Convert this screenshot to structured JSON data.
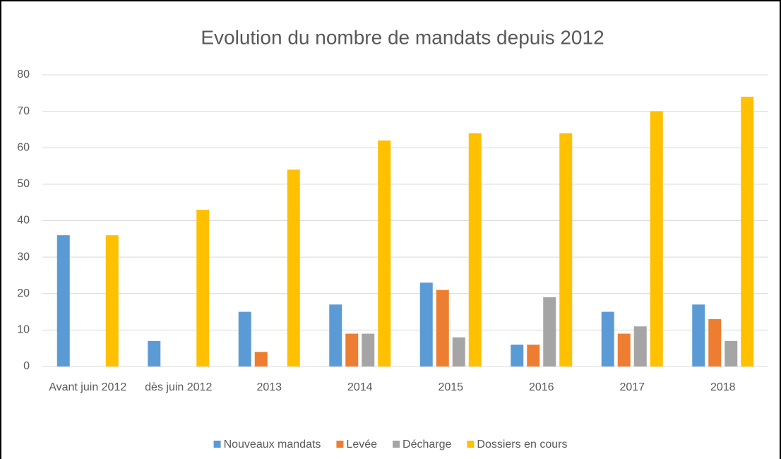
{
  "chart_data": {
    "type": "bar",
    "title": "Evolution du nombre de mandats depuis 2012",
    "categories": [
      "Avant juin 2012",
      "dès juin 2012",
      "2013",
      "2014",
      "2015",
      "2016",
      "2017",
      "2018"
    ],
    "series": [
      {
        "name": "Nouveaux mandats",
        "color": "#5b9bd5",
        "values": [
          36,
          7,
          15,
          17,
          23,
          6,
          15,
          17
        ]
      },
      {
        "name": "Levée",
        "color": "#ed7d31",
        "values": [
          0,
          0,
          4,
          9,
          21,
          6,
          9,
          13
        ]
      },
      {
        "name": "Décharge",
        "color": "#a5a5a5",
        "values": [
          0,
          0,
          0,
          9,
          8,
          19,
          11,
          7
        ]
      },
      {
        "name": "Dossiers en cours",
        "color": "#ffc000",
        "values": [
          36,
          43,
          54,
          62,
          64,
          64,
          70,
          74
        ]
      }
    ],
    "ylim": [
      0,
      80
    ],
    "yticks": [
      0,
      10,
      20,
      30,
      40,
      50,
      60,
      70,
      80
    ],
    "grid": true,
    "legend": "bottom"
  }
}
